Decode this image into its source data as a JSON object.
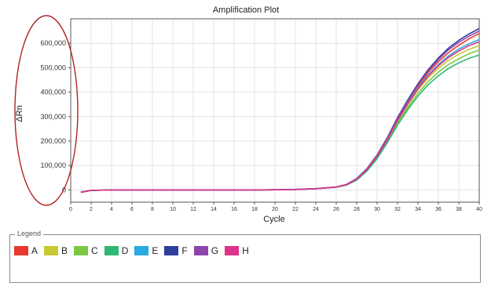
{
  "chart_data": {
    "type": "line",
    "title": "Amplification Plot",
    "xlabel": "Cycle",
    "ylabel": "ΔRn",
    "xlim": [
      0,
      40
    ],
    "ylim": [
      -50000,
      700000
    ],
    "x_ticks": [
      0,
      2,
      4,
      6,
      8,
      10,
      12,
      14,
      16,
      18,
      20,
      22,
      24,
      26,
      28,
      30,
      32,
      34,
      36,
      38,
      40
    ],
    "x_tick_labels": [
      "0",
      "2",
      "4",
      "6",
      "8",
      "10",
      "12",
      "14",
      "16",
      "18",
      "20",
      "22",
      "24",
      "26",
      "28",
      "30",
      "32",
      "34",
      "36",
      "38",
      "40"
    ],
    "y_ticks": [
      0,
      100000,
      200000,
      300000,
      400000,
      500000,
      600000
    ],
    "y_tick_labels": [
      "0",
      "100,000",
      "200,000",
      "300,000",
      "400,000",
      "500,000",
      "600,000"
    ],
    "grid": true,
    "annotation": "red ellipse around y-axis tick labels",
    "x": [
      1,
      2,
      4,
      6,
      8,
      10,
      12,
      14,
      16,
      18,
      20,
      22,
      24,
      26,
      27,
      28,
      29,
      30,
      31,
      32,
      33,
      34,
      35,
      36,
      37,
      38,
      39,
      40
    ],
    "series": [
      {
        "name": "A",
        "color": "#e8392c",
        "values": [
          -10000,
          -2000,
          0,
          0,
          0,
          0,
          0,
          0,
          0,
          0,
          500,
          2000,
          5000,
          12000,
          22000,
          45000,
          85000,
          140000,
          210000,
          290000,
          360000,
          425000,
          480000,
          525000,
          562000,
          592000,
          618000,
          640000
        ]
      },
      {
        "name": "B",
        "color": "#c8c832",
        "values": [
          -9000,
          -2000,
          0,
          0,
          0,
          0,
          0,
          0,
          0,
          0,
          500,
          2000,
          5000,
          12000,
          21000,
          43000,
          82000,
          135000,
          203000,
          280000,
          347000,
          408000,
          458000,
          498000,
          530000,
          555000,
          575000,
          590000
        ]
      },
      {
        "name": "C",
        "color": "#7ac943",
        "values": [
          -9000,
          -2000,
          0,
          0,
          0,
          0,
          0,
          0,
          0,
          0,
          500,
          2000,
          5000,
          11000,
          20000,
          41000,
          79000,
          131000,
          197000,
          272000,
          337000,
          395000,
          443000,
          482000,
          513000,
          537000,
          557000,
          572000
        ]
      },
      {
        "name": "D",
        "color": "#2eb872",
        "values": [
          -8000,
          -2000,
          0,
          0,
          0,
          0,
          0,
          0,
          0,
          0,
          500,
          2000,
          4500,
          11000,
          20000,
          40000,
          77000,
          128000,
          193000,
          265000,
          328000,
          384000,
          430000,
          467000,
          497000,
          520000,
          538000,
          552000
        ]
      },
      {
        "name": "E",
        "color": "#29abe2",
        "values": [
          -9000,
          -2000,
          0,
          0,
          0,
          0,
          0,
          0,
          0,
          0,
          500,
          2000,
          5000,
          12000,
          21000,
          44000,
          84000,
          138000,
          207000,
          286000,
          355000,
          418000,
          470000,
          513000,
          548000,
          576000,
          598000,
          615000
        ]
      },
      {
        "name": "F",
        "color": "#2c3e9e",
        "values": [
          -10000,
          -2000,
          0,
          0,
          0,
          0,
          0,
          0,
          0,
          0,
          500,
          2000,
          5000,
          12000,
          22000,
          46000,
          87000,
          143000,
          214000,
          296000,
          368000,
          434000,
          492000,
          540000,
          580000,
          612000,
          638000,
          660000
        ]
      },
      {
        "name": "G",
        "color": "#8e44ad",
        "values": [
          -10000,
          -2000,
          0,
          0,
          0,
          0,
          0,
          0,
          0,
          0,
          500,
          2000,
          5000,
          12000,
          22000,
          45000,
          86000,
          142000,
          212000,
          293000,
          364000,
          430000,
          487000,
          534000,
          573000,
          604000,
          629000,
          650000
        ]
      },
      {
        "name": "H",
        "color": "#e0338a",
        "values": [
          -9000,
          -2000,
          0,
          0,
          0,
          0,
          0,
          0,
          0,
          0,
          500,
          2000,
          5000,
          12000,
          21000,
          44000,
          83000,
          137000,
          205000,
          283000,
          352000,
          414000,
          466000,
          508000,
          542000,
          568000,
          590000,
          606000
        ]
      }
    ]
  },
  "legend": {
    "title": "Legend",
    "items": [
      {
        "label": "A",
        "color": "#e8392c"
      },
      {
        "label": "B",
        "color": "#c8c832"
      },
      {
        "label": "C",
        "color": "#7ac943"
      },
      {
        "label": "D",
        "color": "#2eb872"
      },
      {
        "label": "E",
        "color": "#29abe2"
      },
      {
        "label": "F",
        "color": "#2c3e9e"
      },
      {
        "label": "G",
        "color": "#8e44ad"
      },
      {
        "label": "H",
        "color": "#e0338a"
      }
    ]
  }
}
